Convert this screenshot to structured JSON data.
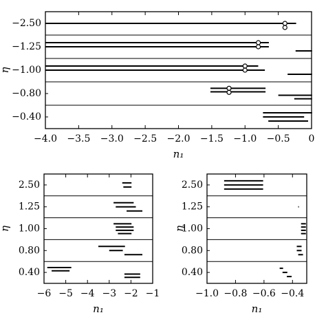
{
  "chart_data": [
    {
      "type": "segments",
      "xlabel": "n₁",
      "ylabel": "η",
      "categories": [
        "−2.50",
        "−1.25",
        "−1.00",
        "−0.80",
        "−0.40"
      ],
      "segments": [
        [
          [
            -4.0,
            -0.24
          ]
        ],
        [
          [
            -4.0,
            -0.65
          ],
          [
            -4.0,
            -0.65
          ],
          [
            -0.24,
            0
          ]
        ],
        [
          [
            -4.0,
            -0.81
          ],
          [
            -4.0,
            -0.71
          ],
          [
            -0.36,
            0
          ]
        ],
        [
          [
            -1.52,
            -0.7
          ],
          [
            -1.52,
            -0.7
          ],
          [
            -0.5,
            0
          ],
          [
            -0.26,
            0
          ]
        ],
        [
          [
            -0.73,
            0
          ],
          [
            -0.73,
            -0.12
          ],
          [
            -0.65,
            -0.06
          ]
        ]
      ],
      "markers": [
        -0.4,
        -0.8,
        -1.0,
        -1.24,
        null
      ],
      "xlim": [
        -4.0,
        0
      ],
      "xticks": [
        {
          "value": -4.0,
          "label": "−4.0"
        },
        {
          "value": -3.5,
          "label": "−3.5"
        },
        {
          "value": -3.0,
          "label": "−3.0"
        },
        {
          "value": -2.5,
          "label": "−2.5"
        },
        {
          "value": -2.0,
          "label": "−2.0"
        },
        {
          "value": -1.5,
          "label": "−1.5"
        },
        {
          "value": -1.0,
          "label": "−1.0"
        },
        {
          "value": -0.5,
          "label": "−0.5"
        },
        0
      ]
    },
    {
      "type": "segments",
      "xlabel": "n₁",
      "ylabel": "η",
      "categories": [
        "2.50",
        "1.25",
        "1.00",
        "0.80",
        "0.40"
      ],
      "segments": [
        [
          [
            -2.4,
            -2.0
          ],
          [
            -2.35,
            -2.0
          ]
        ],
        [
          [
            -2.8,
            -1.9
          ],
          [
            -2.7,
            -1.8
          ],
          [
            -2.2,
            -1.5
          ]
        ],
        [
          [
            -2.8,
            -2.0
          ],
          [
            -2.7,
            -1.9
          ],
          [
            -2.7,
            -1.9
          ],
          [
            -2.6,
            -2.0
          ]
        ],
        [
          [
            -3.5,
            -2.3
          ],
          [
            -3.0,
            -2.4
          ],
          [
            -2.3,
            -1.5
          ]
        ],
        [
          [
            -5.85,
            -4.77
          ],
          [
            -5.65,
            -4.85
          ],
          [
            -2.3,
            -1.6
          ],
          [
            -2.3,
            -1.6
          ]
        ]
      ],
      "markers": [
        null,
        null,
        null,
        null,
        null
      ],
      "xlim": [
        -6,
        -1
      ],
      "xticks": [
        {
          "value": -6,
          "label": "−6"
        },
        {
          "value": -5,
          "label": "−5"
        },
        {
          "value": -4,
          "label": "−4"
        },
        {
          "value": -3,
          "label": "−3"
        },
        {
          "value": -2,
          "label": "−2"
        },
        {
          "value": -1,
          "label": "−1"
        }
      ]
    },
    {
      "type": "segments",
      "xlabel": "n₁",
      "ylabel": "η",
      "categories": [
        "2.50",
        "1.25",
        "1.00",
        "0.80",
        "0.40"
      ],
      "segments": [
        [
          [
            -0.88,
            -0.61
          ],
          [
            -0.88,
            -0.61
          ],
          [
            -0.88,
            -0.61
          ]
        ],
        [
          [
            -0.36,
            -0.359
          ]
        ],
        [
          [
            -0.34,
            -0.31
          ],
          [
            -0.34,
            -0.31
          ],
          [
            -0.34,
            -0.31
          ],
          [
            -0.34,
            -0.31
          ]
        ],
        [
          [
            -0.37,
            -0.34
          ],
          [
            -0.37,
            -0.34
          ],
          [
            -0.36,
            -0.33
          ]
        ],
        [
          [
            -0.49,
            -0.47
          ],
          [
            -0.47,
            -0.44
          ],
          [
            -0.44,
            -0.41
          ]
        ]
      ],
      "markers": [
        null,
        null,
        null,
        null,
        null
      ],
      "xlim": [
        -1.0,
        -0.3
      ],
      "xticks": [
        {
          "value": -1.0,
          "label": "−1.0"
        },
        {
          "value": -0.8,
          "label": "−0.8"
        },
        {
          "value": -0.6,
          "label": "−0.6"
        },
        {
          "value": -0.4,
          "label": "−0.4"
        }
      ]
    }
  ]
}
